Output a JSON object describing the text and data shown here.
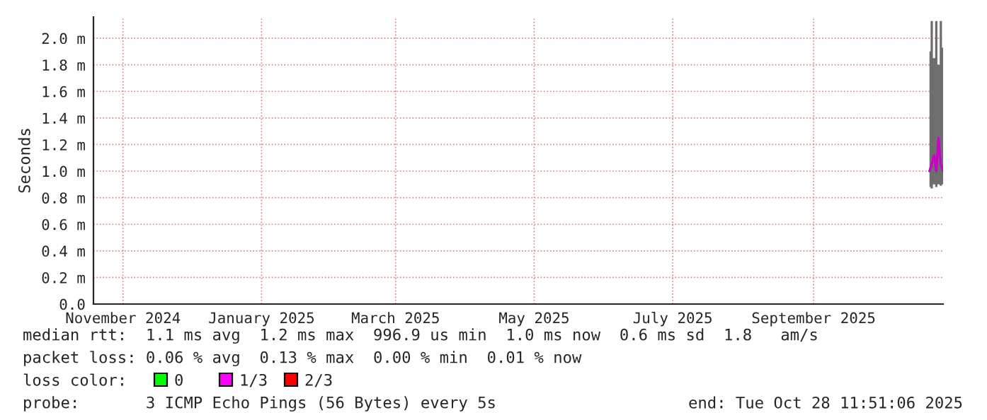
{
  "chart_data": {
    "type": "line",
    "ylabel": "Seconds",
    "x": [
      "2025-10-22",
      "2025-10-23",
      "2025-10-24",
      "2025-10-25",
      "2025-10-26",
      "2025-10-27",
      "2025-10-28"
    ],
    "series": [
      {
        "color": "#cc00cc",
        "values": [
          1.0,
          1.05,
          1.12,
          1.0,
          1.25,
          1.05,
          1.0
        ],
        "lower": [
          0.88,
          0.87,
          0.9,
          0.88,
          0.9,
          0.89,
          0.9
        ],
        "upper": [
          1.9,
          2.13,
          1.85,
          2.13,
          1.8,
          2.13,
          1.93
        ]
      }
    ],
    "xlim": [
      "2024-10-19",
      "2025-10-28"
    ],
    "xticks": [
      {
        "value": "2024-11-01",
        "label": "November 2024"
      },
      {
        "value": "2025-01-01",
        "label": "January 2025"
      },
      {
        "value": "2025-03-01",
        "label": "March 2025"
      },
      {
        "value": "2025-05-01",
        "label": "May 2025"
      },
      {
        "value": "2025-07-01",
        "label": "July 2025"
      },
      {
        "value": "2025-09-01",
        "label": "September 2025"
      }
    ],
    "ylim": [
      0,
      2.16
    ],
    "yticks": [
      {
        "value": 0,
        "label": "0.0"
      },
      {
        "value": 0.2,
        "label": "0.2 m"
      },
      {
        "value": 0.4,
        "label": "0.4 m"
      },
      {
        "value": 0.6,
        "label": "0.6 m"
      },
      {
        "value": 0.8,
        "label": "0.8 m"
      },
      {
        "value": 1.0,
        "label": "1.0 m"
      },
      {
        "value": 1.2,
        "label": "1.2 m"
      },
      {
        "value": 1.4,
        "label": "1.4 m"
      },
      {
        "value": 1.6,
        "label": "1.6 m"
      },
      {
        "value": 1.8,
        "label": "1.8 m"
      },
      {
        "value": 2.0,
        "label": "2.0 m"
      }
    ],
    "grid": true,
    "annotations": [
      "median rtt:  1.1 ms avg  1.2 ms max  996.9 us min  1.0 ms now  0.6 ms sd  1.8   am/s",
      "packet loss: 0.06 % avg  0.13 % max  0.00 % min  0.01 % now",
      "loss color:",
      "0",
      "1/3",
      "2/3",
      "probe:       3 ICMP Echo Pings (56 Bytes) every 5s",
      "end: Tue Oct 28 11:51:06 2025"
    ]
  }
}
